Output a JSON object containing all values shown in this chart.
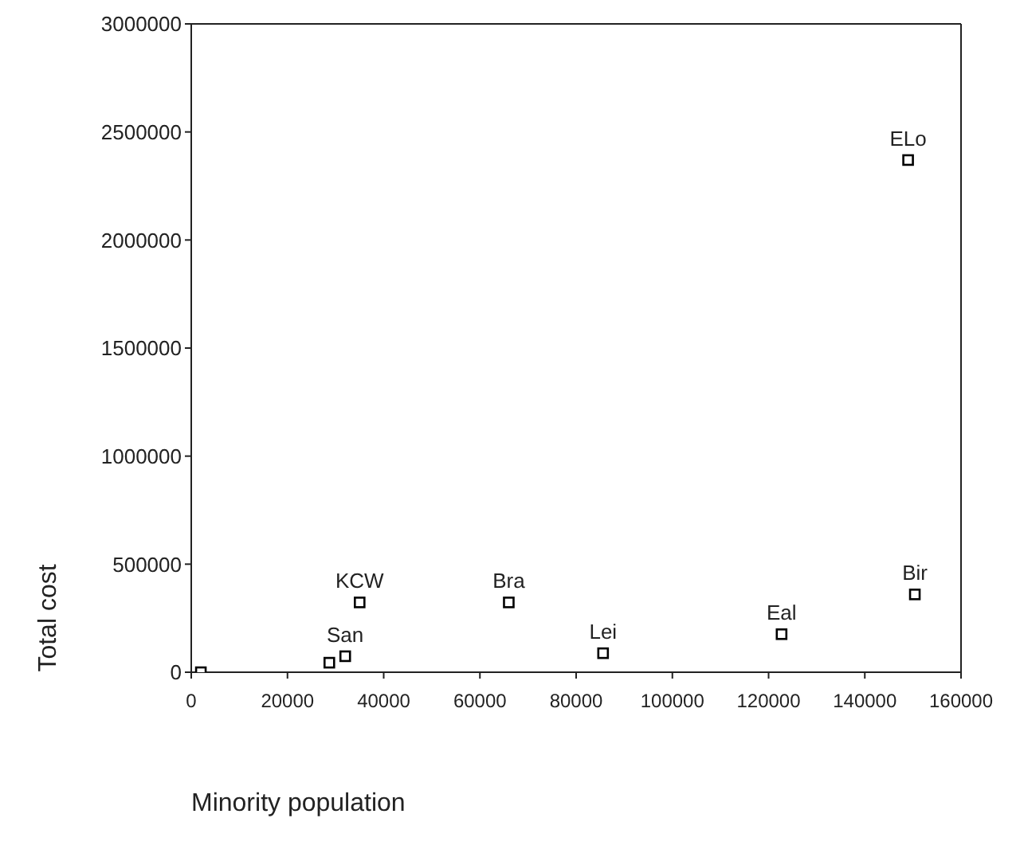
{
  "chart_data": {
    "type": "scatter",
    "xlabel": "Minority population",
    "ylabel": "Total cost",
    "x": [
      149000,
      150400,
      122700,
      85600,
      66000,
      35000,
      32000,
      28700,
      2000
    ],
    "series": [
      {
        "color": "#000000",
        "values": [
          2370000,
          360000,
          176000,
          88000,
          323000,
          323000,
          74000,
          44000,
          0
        ]
      }
    ],
    "xlim": [
      0,
      160000
    ],
    "xticks": [
      0,
      20000,
      40000,
      60000,
      80000,
      100000,
      120000,
      140000,
      160000
    ],
    "ylim": [
      0,
      3000000
    ],
    "yticks": [
      0,
      500000,
      1000000,
      1500000,
      2000000,
      2500000,
      3000000
    ],
    "marker": "square",
    "annotations": [
      {
        "text": "ELo",
        "x": 149000,
        "y": 2370000
      },
      {
        "text": "Bir",
        "x": 150400,
        "y": 360000
      },
      {
        "text": "Eal",
        "x": 122700,
        "y": 176000
      },
      {
        "text": "Lei",
        "x": 85600,
        "y": 88000
      },
      {
        "text": "Bra",
        "x": 66000,
        "y": 323000
      },
      {
        "text": "KCW",
        "x": 35000,
        "y": 323000
      },
      {
        "text": "San",
        "x": 32000,
        "y": 74000
      }
    ]
  }
}
